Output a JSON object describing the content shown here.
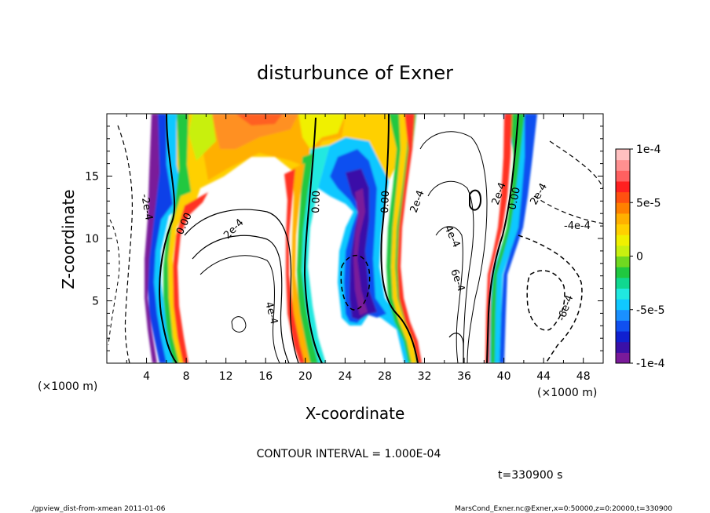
{
  "chart_data": {
    "type": "heatmap",
    "title": "disturbunce of Exner",
    "xlabel": "X-coordinate",
    "ylabel": "Z-coordinate",
    "x_units": "(×1000 m)",
    "y_units": "(×1000 m)",
    "xlim": [
      0,
      50
    ],
    "ylim": [
      0,
      20
    ],
    "xticks": [
      4,
      8,
      12,
      16,
      20,
      24,
      28,
      32,
      36,
      40,
      44,
      48
    ],
    "yticks": [
      5,
      10,
      15
    ],
    "colorbar": {
      "range": [
        -0.0001,
        0.0001
      ],
      "tick_values": [
        0.0001,
        5e-05,
        0,
        -5e-05,
        -0.0001
      ],
      "tick_labels": [
        "1e-4",
        "5e-5",
        "0",
        "-5e-5",
        "-1e-4"
      ],
      "colors": [
        "#7a1a9a",
        "#3a10a8",
        "#1020d0",
        "#1050f0",
        "#1a90ff",
        "#10c8ff",
        "#20e8e0",
        "#10d890",
        "#20c840",
        "#70d820",
        "#c8f010",
        "#f0f000",
        "#ffd000",
        "#ffb000",
        "#ff8000",
        "#ff5010",
        "#ff2020",
        "#ff6060",
        "#ff9090",
        "#ffc0c0"
      ]
    },
    "contour_interval": "1.000E-04",
    "contour_label": "CONTOUR INTERVAL = 1.000E-04",
    "contour_labels": [
      "-2e-4",
      "0.00",
      "2e-4",
      "0.00",
      "0.00",
      "2e-4",
      "4e-4",
      "6e-4",
      "2e-4",
      "0.00",
      "2e-4",
      "-4e-4",
      "-6e-4",
      "4e-4"
    ],
    "time_label": "t=330900 s",
    "footer_left": "./gpview_dist-from-xmean  2011-01-06",
    "footer_right": "MarsCond_Exner.nc@Exner,x=0:50000,z=0:20000,t=330900"
  }
}
